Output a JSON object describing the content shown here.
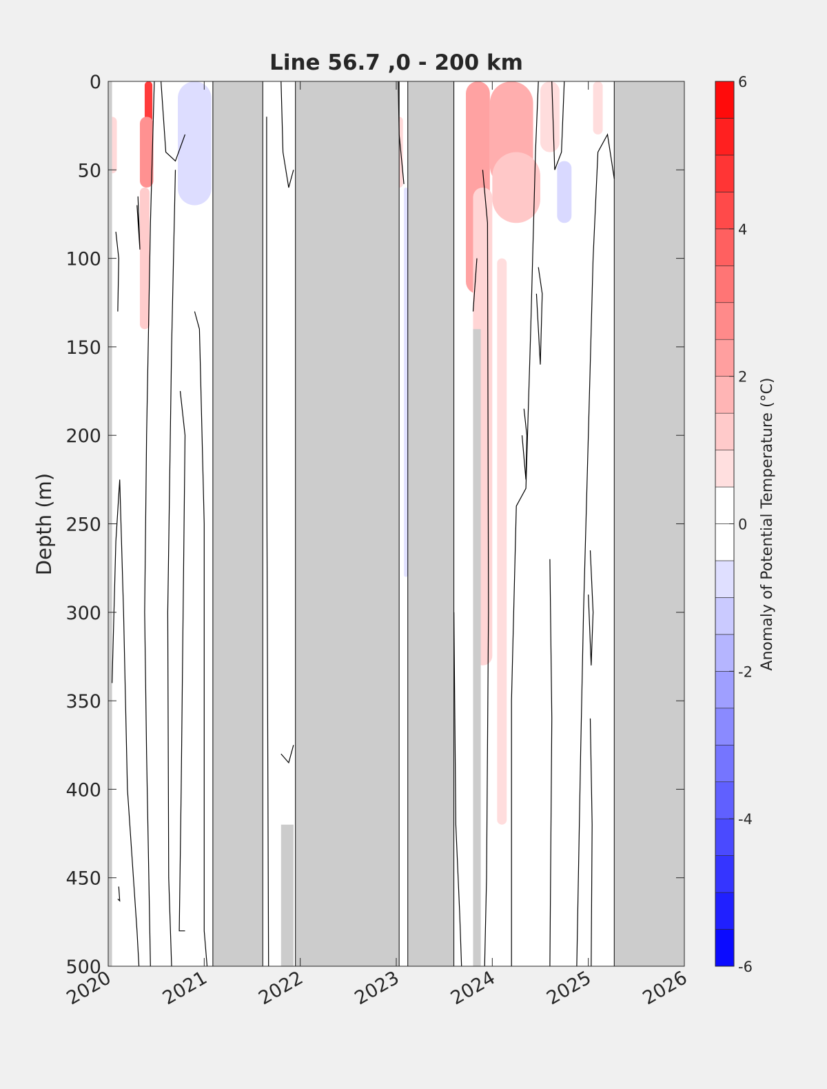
{
  "chart_data": {
    "type": "heatmap",
    "title": "Line 56.7 ,0 - 200 km",
    "ylabel": "Depth (m)",
    "xlabel": "",
    "x_range": [
      2020,
      2026
    ],
    "y_range": [
      0,
      500
    ],
    "y_reversed": true,
    "x_ticks": [
      "2020",
      "2021",
      "2022",
      "2023",
      "2024",
      "2025",
      "2026"
    ],
    "y_ticks": [
      "0",
      "50",
      "100",
      "150",
      "200",
      "250",
      "300",
      "350",
      "400",
      "450",
      "500"
    ],
    "colorbar": {
      "label": "Anomaly of Potential Temperature (°C)",
      "range": [
        -6,
        6
      ],
      "step": 0.5,
      "ticks": [
        "-6",
        "-4",
        "-2",
        "0",
        "2",
        "4",
        "6"
      ]
    },
    "no_data_periods": [
      {
        "start": 2021.09,
        "end": 2021.61
      },
      {
        "start": 2021.95,
        "end": 2023.03
      },
      {
        "start": 2023.12,
        "end": 2023.6
      },
      {
        "start": 2025.27,
        "end": 2026.0
      }
    ],
    "grid": false,
    "colors": {
      "missing": "#cccccc",
      "warm_max": "#ff0000",
      "cold_max": "#0000ff",
      "zero": "#ffffff",
      "contour": "#000000",
      "background": "#f0f0f0"
    }
  }
}
